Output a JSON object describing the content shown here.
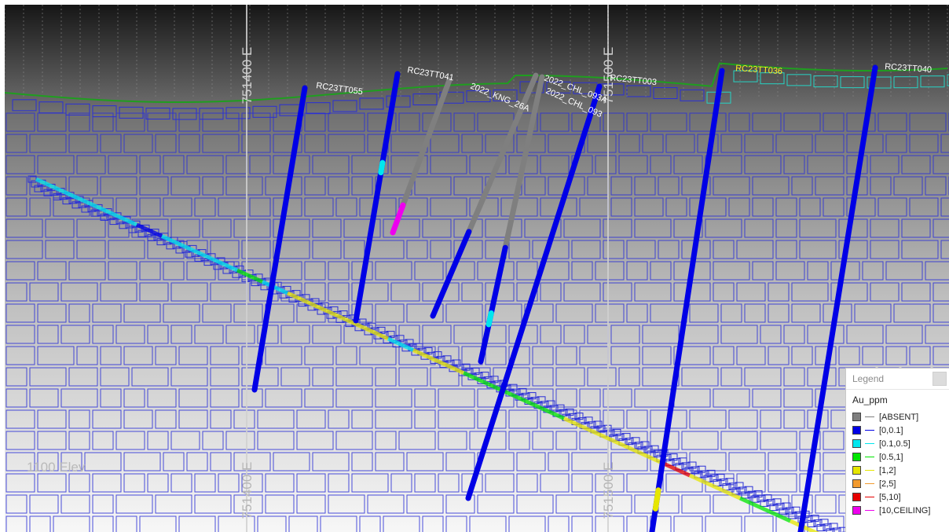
{
  "view": {
    "grid_labels": {
      "top": [
        "751400 E",
        "751500 E"
      ],
      "bottom": [
        "751400 E",
        "751500 E"
      ],
      "elevation": "1100 Elev"
    }
  },
  "drillholes": [
    {
      "name": "RC23TT055",
      "color": "#0c1abe"
    },
    {
      "name": "RC23TT041",
      "color": "#0c1abe"
    },
    {
      "name": "2022_KNG_26A",
      "color": "#7a7a7a"
    },
    {
      "name": "2022_CHL_093A",
      "color": "#7a7a7a"
    },
    {
      "name": "2022_CHL_093",
      "color": "#7a7a7a"
    },
    {
      "name": "RC23TT003",
      "color": "#0c1abe"
    },
    {
      "name": "RC23TT036",
      "color": "#0c1abe"
    },
    {
      "name": "RC23TT040",
      "color": "#0c1abe"
    }
  ],
  "legend": {
    "title": "Legend",
    "field": "Au_ppm",
    "items": [
      {
        "label": "[ABSENT]",
        "color": "#7f7f7f"
      },
      {
        "label": "[0,0.1]",
        "color": "#0000e6"
      },
      {
        "label": "[0.1,0.5]",
        "color": "#00e6ee"
      },
      {
        "label": "[0.5,1]",
        "color": "#00e600"
      },
      {
        "label": "[1,2]",
        "color": "#e6e600"
      },
      {
        "label": "[2,5]",
        "color": "#f29a2e"
      },
      {
        "label": "[5,10]",
        "color": "#e60000"
      },
      {
        "label": "[10,CEILING]",
        "color": "#ee00ee"
      }
    ]
  },
  "colors": {
    "sky_top": "#1c1c1c",
    "sky_bottom": "#b9b9b9",
    "ground_bottom": "#f6f6f6",
    "block_outline": "#2a2fd6",
    "topography": "#1f9e1f",
    "block_cyan": "#27d3c4",
    "label_yellow": "#ffee22"
  }
}
